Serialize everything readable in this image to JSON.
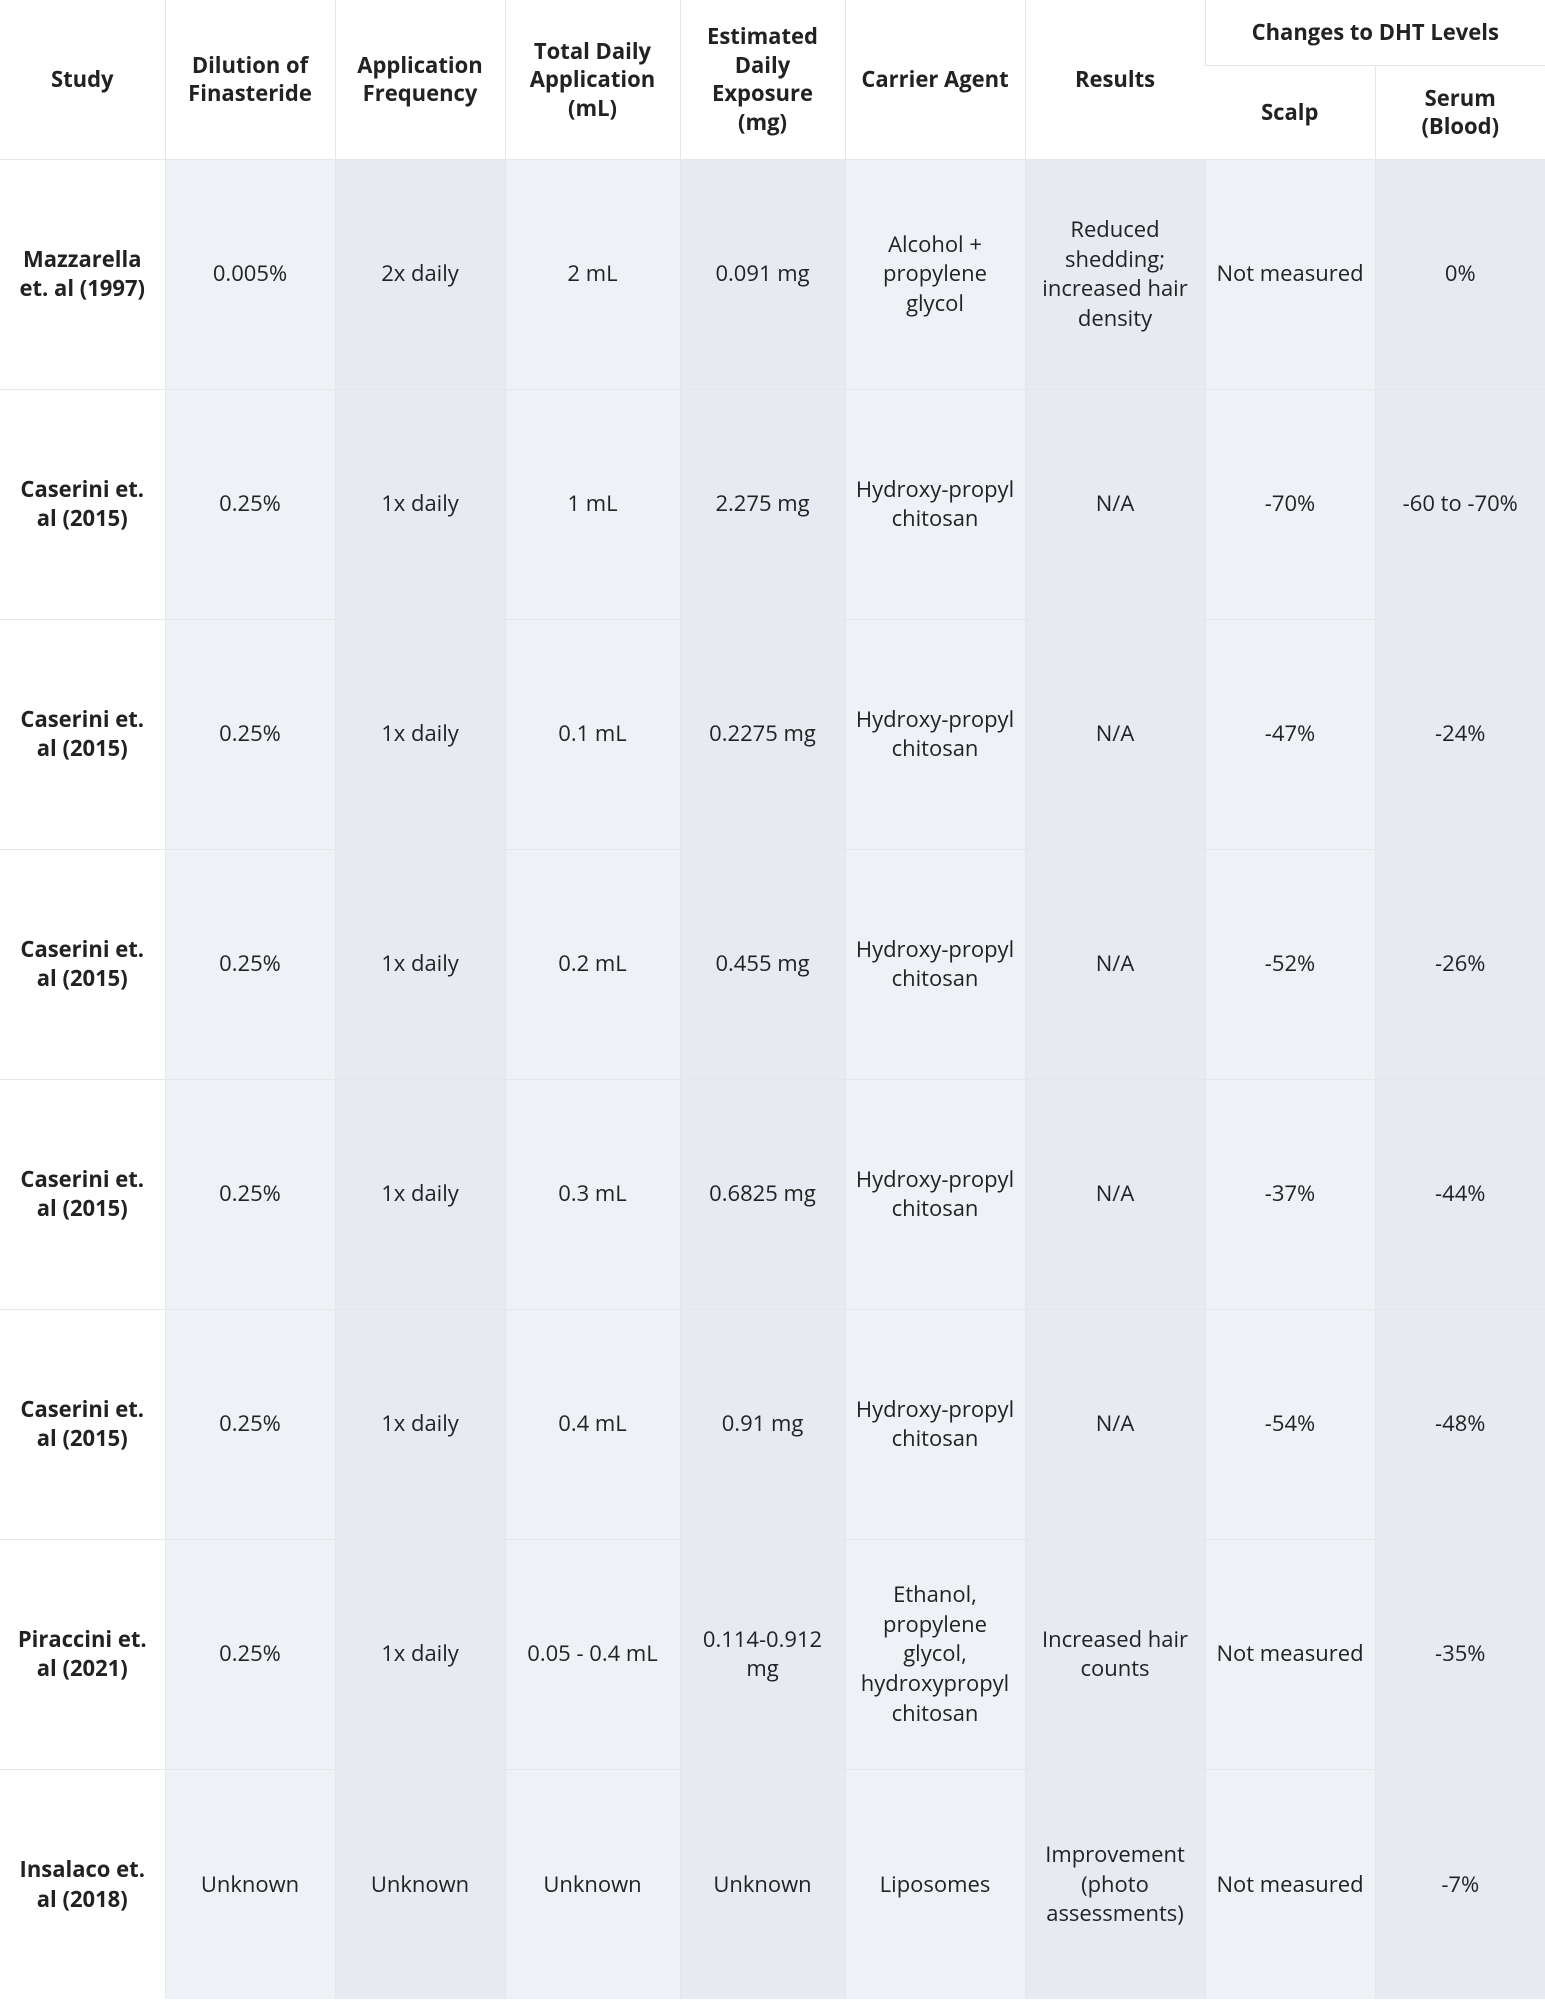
{
  "colors": {
    "bg": "#ffffff",
    "cell_bg": "#eef1f6",
    "cell_bg_shade": "#e7eaf1",
    "border": "#e6e6e6",
    "text": "#222222"
  },
  "header": {
    "group": "Changes to DHT Levels",
    "study": "Study",
    "dilution": "Dilution of Finasteride",
    "frequency": "Application Frequency",
    "total_app": "Total Daily Application (mL)",
    "exposure": "Estimated Daily Exposure (mg)",
    "carrier": "Carrier Agent",
    "results": "Results",
    "scalp": "Scalp",
    "serum": "Serum (Blood)"
  },
  "rows": [
    {
      "study": "Mazzarella et. al (1997)",
      "dilution": "0.005%",
      "frequency": "2x daily",
      "total_app": "2 mL",
      "exposure": "0.091 mg",
      "carrier": "Alcohol + propylene glycol",
      "results": "Reduced shedding; increased hair density",
      "scalp": "Not measured",
      "serum": "0%"
    },
    {
      "study": "Caserini et. al (2015)",
      "dilution": "0.25%",
      "frequency": "1x daily",
      "total_app": "1 mL",
      "exposure": "2.275 mg",
      "carrier": "Hydroxy-propyl chitosan",
      "results": "N/A",
      "scalp": "-70%",
      "serum": "-60 to -70%"
    },
    {
      "study": "Caserini et. al (2015)",
      "dilution": "0.25%",
      "frequency": "1x daily",
      "total_app": "0.1 mL",
      "exposure": "0.2275 mg",
      "carrier": "Hydroxy-propyl chitosan",
      "results": "N/A",
      "scalp": "-47%",
      "serum": "-24%"
    },
    {
      "study": "Caserini et. al (2015)",
      "dilution": "0.25%",
      "frequency": "1x daily",
      "total_app": "0.2 mL",
      "exposure": "0.455 mg",
      "carrier": "Hydroxy-propyl chitosan",
      "results": "N/A",
      "scalp": "-52%",
      "serum": "-26%"
    },
    {
      "study": "Caserini et. al (2015)",
      "dilution": "0.25%",
      "frequency": "1x daily",
      "total_app": "0.3 mL",
      "exposure": "0.6825 mg",
      "carrier": "Hydroxy-propyl chitosan",
      "results": "N/A",
      "scalp": "-37%",
      "serum": "-44%"
    },
    {
      "study": "Caserini et. al (2015)",
      "dilution": "0.25%",
      "frequency": "1x daily",
      "total_app": "0.4 mL",
      "exposure": "0.91 mg",
      "carrier": "Hydroxy-propyl chitosan",
      "results": "N/A",
      "scalp": "-54%",
      "serum": "-48%"
    },
    {
      "study": "Piraccini et. al (2021)",
      "dilution": "0.25%",
      "frequency": "1x daily",
      "total_app": "0.05 - 0.4 mL",
      "exposure": "0.114-0.912 mg",
      "carrier": "Ethanol, propylene glycol, hydroxypropyl chitosan",
      "results": "Increased hair counts",
      "scalp": "Not measured",
      "serum": "-35%"
    },
    {
      "study": "Insalaco et. al (2018)",
      "dilution": "Unknown",
      "frequency": "Unknown",
      "total_app": "Unknown",
      "exposure": "Unknown",
      "carrier": "Liposomes",
      "results": "Improvement (photo assessments)",
      "scalp": "Not measured",
      "serum": "-7%"
    }
  ]
}
